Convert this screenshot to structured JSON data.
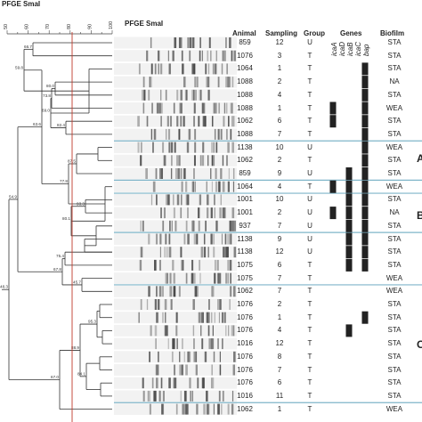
{
  "titles": {
    "main": "PFGE SmaI",
    "gel": "PFGE SmaI"
  },
  "scale": {
    "ticks": [
      "50",
      "60",
      "70",
      "80",
      "90",
      "100"
    ]
  },
  "headers": {
    "animal": "Animal",
    "sampling": "Sampling",
    "group": "Group",
    "genes": "Genes",
    "biofilm": "Biofilm",
    "gene_names": [
      "icaA",
      "icaD",
      "icaB",
      "icaC",
      "bap"
    ]
  },
  "rows": [
    {
      "animal": "859",
      "sampling": "12",
      "group": "U",
      "genes": [
        0,
        0,
        0,
        0,
        0
      ],
      "biofilm": "STA"
    },
    {
      "animal": "1076",
      "sampling": "3",
      "group": "T",
      "genes": [
        0,
        0,
        0,
        0,
        0
      ],
      "biofilm": "STA"
    },
    {
      "animal": "1064",
      "sampling": "1",
      "group": "T",
      "genes": [
        0,
        0,
        0,
        0,
        1
      ],
      "biofilm": "STA"
    },
    {
      "animal": "1088",
      "sampling": "2",
      "group": "T",
      "genes": [
        0,
        0,
        0,
        0,
        1
      ],
      "biofilm": "NA"
    },
    {
      "animal": "1088",
      "sampling": "4",
      "group": "T",
      "genes": [
        0,
        0,
        0,
        0,
        1
      ],
      "biofilm": "STA"
    },
    {
      "animal": "1088",
      "sampling": "1",
      "group": "T",
      "genes": [
        1,
        0,
        0,
        0,
        1
      ],
      "biofilm": "WEA"
    },
    {
      "animal": "1062",
      "sampling": "6",
      "group": "T",
      "genes": [
        1,
        0,
        0,
        0,
        1
      ],
      "biofilm": "STA"
    },
    {
      "animal": "1088",
      "sampling": "7",
      "group": "T",
      "genes": [
        0,
        0,
        0,
        0,
        1
      ],
      "biofilm": "STA"
    },
    {
      "animal": "1138",
      "sampling": "10",
      "group": "U",
      "genes": [
        0,
        0,
        0,
        0,
        1
      ],
      "biofilm": "WEA"
    },
    {
      "animal": "1062",
      "sampling": "2",
      "group": "T",
      "genes": [
        0,
        0,
        0,
        0,
        1
      ],
      "biofilm": "STA"
    },
    {
      "animal": "859",
      "sampling": "9",
      "group": "U",
      "genes": [
        0,
        0,
        1,
        0,
        1
      ],
      "biofilm": "STA"
    },
    {
      "animal": "1064",
      "sampling": "4",
      "group": "T",
      "genes": [
        1,
        0,
        1,
        0,
        1
      ],
      "biofilm": "WEA"
    },
    {
      "animal": "1001",
      "sampling": "10",
      "group": "U",
      "genes": [
        0,
        0,
        1,
        0,
        1
      ],
      "biofilm": "STA"
    },
    {
      "animal": "1001",
      "sampling": "2",
      "group": "U",
      "genes": [
        1,
        0,
        1,
        0,
        1
      ],
      "biofilm": "NA"
    },
    {
      "animal": "937",
      "sampling": "7",
      "group": "U",
      "genes": [
        0,
        0,
        1,
        0,
        1
      ],
      "biofilm": "STA"
    },
    {
      "animal": "1138",
      "sampling": "9",
      "group": "U",
      "genes": [
        0,
        0,
        1,
        0,
        1
      ],
      "biofilm": "STA"
    },
    {
      "animal": "1138",
      "sampling": "12",
      "group": "U",
      "genes": [
        0,
        0,
        1,
        0,
        1
      ],
      "biofilm": "STA"
    },
    {
      "animal": "1075",
      "sampling": "6",
      "group": "T",
      "genes": [
        0,
        0,
        1,
        0,
        1
      ],
      "biofilm": "STA"
    },
    {
      "animal": "1075",
      "sampling": "7",
      "group": "T",
      "genes": [
        0,
        0,
        0,
        0,
        0
      ],
      "biofilm": "WEA"
    },
    {
      "animal": "1062",
      "sampling": "7",
      "group": "T",
      "genes": [
        0,
        0,
        0,
        0,
        0
      ],
      "biofilm": "WEA"
    },
    {
      "animal": "1076",
      "sampling": "2",
      "group": "T",
      "genes": [
        0,
        0,
        0,
        0,
        0
      ],
      "biofilm": "STA"
    },
    {
      "animal": "1076",
      "sampling": "1",
      "group": "T",
      "genes": [
        0,
        0,
        0,
        0,
        1
      ],
      "biofilm": "STA"
    },
    {
      "animal": "1076",
      "sampling": "4",
      "group": "T",
      "genes": [
        0,
        0,
        1,
        0,
        0
      ],
      "biofilm": "STA"
    },
    {
      "animal": "1016",
      "sampling": "12",
      "group": "T",
      "genes": [
        0,
        0,
        0,
        0,
        0
      ],
      "biofilm": "STA"
    },
    {
      "animal": "1076",
      "sampling": "8",
      "group": "T",
      "genes": [
        0,
        0,
        0,
        0,
        0
      ],
      "biofilm": "STA"
    },
    {
      "animal": "1076",
      "sampling": "7",
      "group": "T",
      "genes": [
        0,
        0,
        0,
        0,
        0
      ],
      "biofilm": "STA"
    },
    {
      "animal": "1076",
      "sampling": "6",
      "group": "T",
      "genes": [
        0,
        0,
        0,
        0,
        0
      ],
      "biofilm": "STA"
    },
    {
      "animal": "1016",
      "sampling": "11",
      "group": "T",
      "genes": [
        0,
        0,
        0,
        0,
        0
      ],
      "biofilm": "STA"
    },
    {
      "animal": "1062",
      "sampling": "1",
      "group": "T",
      "genes": [
        0,
        0,
        0,
        0,
        0
      ],
      "biofilm": "WEA"
    }
  ],
  "nodes": [
    {
      "value": "66.7"
    },
    {
      "value": "59.8"
    },
    {
      "value": "80.0"
    },
    {
      "value": "73.8"
    },
    {
      "value": "82.4"
    },
    {
      "value": "69.0"
    },
    {
      "value": "63.6"
    },
    {
      "value": "87.5"
    },
    {
      "value": "77.8"
    },
    {
      "value": "54.9"
    },
    {
      "value": "93.3"
    },
    {
      "value": "80.1"
    },
    {
      "value": "75.4"
    },
    {
      "value": "67.8"
    },
    {
      "value": "45.7"
    },
    {
      "value": "48.3"
    },
    {
      "value": "95.3"
    },
    {
      "value": "88.9"
    },
    {
      "value": "84.1"
    },
    {
      "value": "67.0"
    }
  ],
  "clusters": [
    "A",
    "B",
    "C"
  ],
  "colors": {
    "cutoff_line": "#c0392b",
    "separator_line": "#7fb5c9",
    "gene_mark": "#222222"
  }
}
